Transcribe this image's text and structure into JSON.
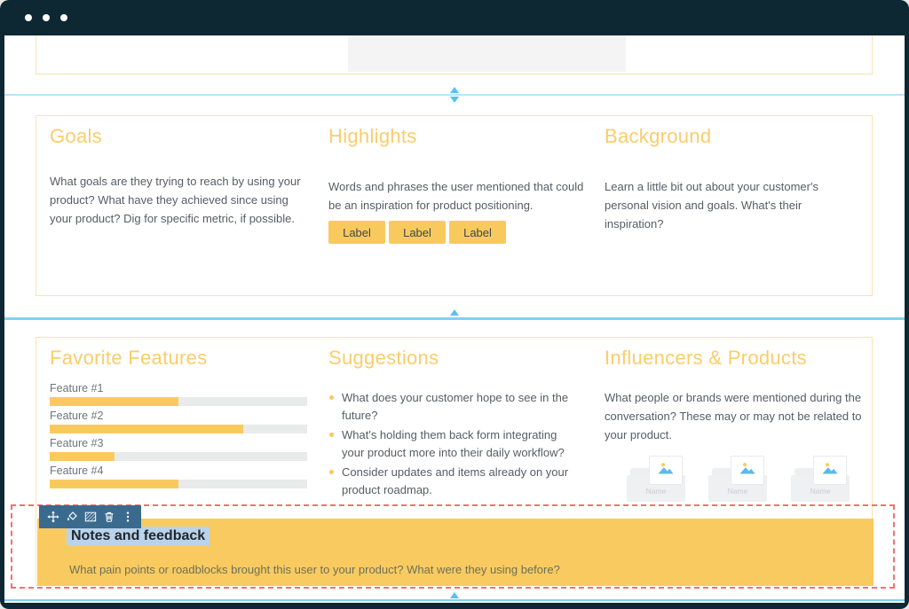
{
  "window": {
    "control_dots": 3
  },
  "colors": {
    "frame_navy": "#0d2733",
    "accent_yellow": "#f8ca5e",
    "heading_yellow": "#f9cd6b",
    "section_border": "#f9e3b2",
    "divider_blue": "#7fd2f3",
    "selection_red": "#f4716e",
    "toolbar_blue": "#3a6b8f",
    "text_gray": "#565d64",
    "highlight_selection": "#b9d3ea"
  },
  "row1": {
    "goals": {
      "title": "Goals",
      "body": "What goals are they trying to reach by using your product? What have they achieved since using your product? Dig for specific metric, if possible."
    },
    "highlights": {
      "title": "Highlights",
      "body": "Words and phrases the user mentioned that could be an inspiration for product positioning.",
      "labels": [
        "Label",
        "Label",
        "Label"
      ]
    },
    "background": {
      "title": "Background",
      "body": "Learn a little bit out about your customer's personal vision and goals. What's their inspiration?"
    }
  },
  "row2": {
    "favorite_features": {
      "title": "Favorite Features",
      "chart": {
        "type": "bar",
        "categories": [
          "Feature #1",
          "Feature #2",
          "Feature #3",
          "Feature #4"
        ],
        "values": [
          50,
          75,
          25,
          50
        ],
        "value_unit": "percent-of-track",
        "bar_color": "#f8ca5e",
        "track_color": "#e9eaea"
      }
    },
    "suggestions": {
      "title": "Suggestions",
      "bullets": [
        "What does your customer hope to see in the future?",
        "What's holding them back form integrating your product more into their daily workflow?",
        "Consider updates and items already on your product roadmap."
      ]
    },
    "influencers": {
      "title": "Influencers & Products",
      "body": "What people or brands were mentioned during the conversation? These may or may not be related to your product.",
      "cards": [
        {
          "label": "Name"
        },
        {
          "label": "Name"
        },
        {
          "label": "Name"
        }
      ]
    }
  },
  "notes": {
    "title": "Notes and feedback",
    "body": "What pain points or roadblocks brought this user to your product? What were they using before?",
    "toolbar_icons": [
      "move",
      "fill-color",
      "pattern",
      "trash",
      "more-options"
    ]
  }
}
